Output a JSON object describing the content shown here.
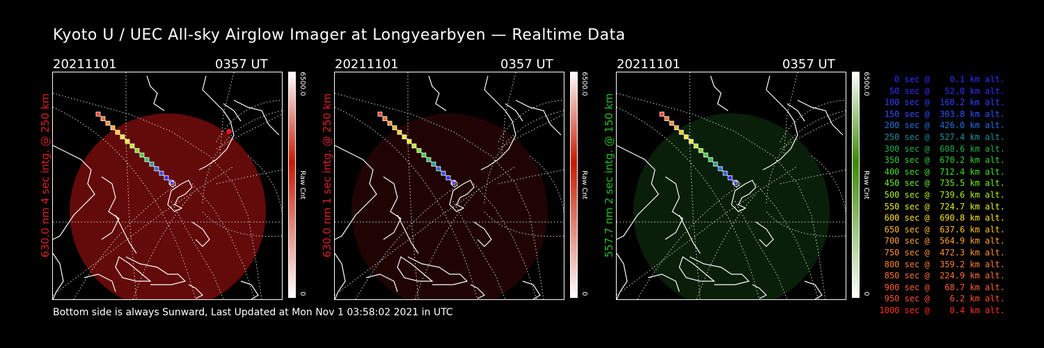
{
  "title": "Kyoto U / UEC All-sky Airglow Imager at Longyearbyen — Realtime Data",
  "footer": "Bottom side is always Sunward, Last Updated at Mon Nov  1 03:58:02 2021 in UTC",
  "panels": [
    {
      "date": "20211101",
      "time": "0357 UT",
      "side_label": "630.0 nm 4 sec intg. @ 250 km",
      "label_color": "#e02020",
      "glow_color": "#a01010",
      "glow_opacity": 0.62,
      "cbar_max": "6500.0",
      "cbar_min": "0",
      "cbar_unit": "Raw Cnt",
      "cbar_color": "#c81800"
    },
    {
      "date": "20211101",
      "time": "0357 UT",
      "side_label": "630.0 nm 1 sec intg. @ 250 km",
      "label_color": "#e02020",
      "glow_color": "#3a0808",
      "glow_opacity": 0.55,
      "cbar_max": "6500.0",
      "cbar_min": "0",
      "cbar_unit": "Raw Cnt",
      "cbar_color": "#c81800"
    },
    {
      "date": "20211101",
      "time": "0357 UT",
      "side_label": "557.7 nm 2 sec intg. @ 150 km",
      "label_color": "#20c020",
      "glow_color": "#0c2a0c",
      "glow_opacity": 0.75,
      "cbar_max": "6500.0",
      "cbar_min": "0",
      "cbar_unit": "Raw Cnt",
      "cbar_color": "#3a8a00"
    }
  ],
  "legend": [
    {
      "text": "   0 sec @    0.1 km alt.",
      "color": "#3030ff"
    },
    {
      "text": "  50 sec @   52.0 km alt.",
      "color": "#3030ff"
    },
    {
      "text": " 100 sec @  160.2 km alt.",
      "color": "#3040ff"
    },
    {
      "text": " 150 sec @  303.8 km alt.",
      "color": "#3050ff"
    },
    {
      "text": " 200 sec @  426.0 km alt.",
      "color": "#2070e0"
    },
    {
      "text": " 250 sec @  527.4 km alt.",
      "color": "#1890a0"
    },
    {
      "text": " 300 sec @  608.6 km alt.",
      "color": "#20b050"
    },
    {
      "text": " 350 sec @  670.2 km alt.",
      "color": "#30d030"
    },
    {
      "text": " 400 sec @  712.4 km alt.",
      "color": "#40e020"
    },
    {
      "text": " 450 sec @  735.5 km alt.",
      "color": "#70f020"
    },
    {
      "text": " 500 sec @  739.6 km alt.",
      "color": "#b0f020"
    },
    {
      "text": " 550 sec @  724.7 km alt.",
      "color": "#e8f020"
    },
    {
      "text": " 600 sec @  690.8 km alt.",
      "color": "#ffe020"
    },
    {
      "text": " 650 sec @  637.6 km alt.",
      "color": "#ffc020"
    },
    {
      "text": " 700 sec @  564.9 km alt.",
      "color": "#ffa030"
    },
    {
      "text": " 750 sec @  472.3 km alt.",
      "color": "#ff9030"
    },
    {
      "text": " 800 sec @  359.2 km alt.",
      "color": "#ff8030"
    },
    {
      "text": " 850 sec @  224.9 km alt.",
      "color": "#ff7030"
    },
    {
      "text": " 900 sec @   68.7 km alt.",
      "color": "#ff6030"
    },
    {
      "text": " 950 sec @    6.2 km alt.",
      "color": "#ff5030"
    },
    {
      "text": "1000 sec @    0.4 km alt.",
      "color": "#ff3020"
    }
  ]
}
